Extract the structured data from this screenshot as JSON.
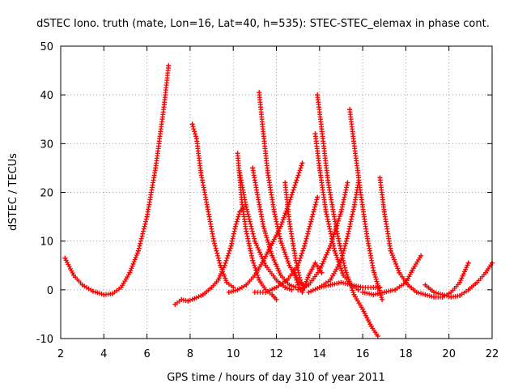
{
  "chart_data": {
    "type": "scatter",
    "title": "dSTEC Iono. truth (mate, Lon=16, Lat=40, h=535): STEC-STEC_elemax in phase cont.",
    "xlabel": "GPS time / hours of day 310 of year 2011",
    "ylabel": "dSTEC  / TECUs",
    "xlim": [
      2,
      22
    ],
    "ylim": [
      -10,
      50
    ],
    "x_ticks": [
      "2",
      "4",
      "6",
      "8",
      "10",
      "12",
      "14",
      "16",
      "18",
      "20",
      "22"
    ],
    "y_ticks": [
      "-10",
      "0",
      "10",
      "20",
      "30",
      "40",
      "50"
    ],
    "grid": true,
    "legend": "none",
    "marker": "+",
    "color": "#ff0000",
    "series": [
      {
        "x": [
          2.2,
          2.6,
          3.0,
          3.5,
          4.0,
          4.4,
          4.8,
          5.2,
          5.6,
          6.0,
          6.4,
          6.8,
          7.0
        ],
        "y": [
          6.5,
          3.0,
          1.0,
          -0.3,
          -1.0,
          -0.8,
          0.5,
          3.5,
          8.0,
          15.0,
          25.0,
          38.0,
          46.0
        ]
      },
      {
        "x": [
          7.3,
          7.6,
          7.9,
          8.2,
          8.6,
          9.0,
          9.3,
          9.6,
          9.9,
          10.1,
          10.3,
          10.5
        ],
        "y": [
          -3.0,
          -2.0,
          -2.3,
          -1.8,
          -1.0,
          0.5,
          2.0,
          5.0,
          9.0,
          13.0,
          16.0,
          17.0
        ]
      },
      {
        "x": [
          8.1,
          8.3,
          8.5,
          8.8,
          9.1,
          9.4,
          9.7,
          10.0
        ],
        "y": [
          34.0,
          31.0,
          24.0,
          17.0,
          10.0,
          5.0,
          1.5,
          0.5
        ]
      },
      {
        "x": [
          10.2,
          10.4,
          10.6,
          10.9,
          11.2,
          11.5,
          11.8,
          12.0
        ],
        "y": [
          28.0,
          18.0,
          12.0,
          6.0,
          2.0,
          0.0,
          -1.0,
          -2.0
        ]
      },
      {
        "x": [
          9.8,
          10.2,
          10.6,
          11.0,
          11.4,
          11.8,
          12.2,
          12.6,
          12.9,
          13.2
        ],
        "y": [
          -0.5,
          0.0,
          1.0,
          3.0,
          6.0,
          9.5,
          13.0,
          18.0,
          22.0,
          26.0
        ]
      },
      {
        "x": [
          10.3,
          10.6,
          11.0,
          11.5,
          12.0,
          12.4,
          12.7
        ],
        "y": [
          24.0,
          17.0,
          10.0,
          5.0,
          2.0,
          0.5,
          0.0
        ]
      },
      {
        "x": [
          10.9,
          11.1,
          11.4,
          11.8,
          12.2,
          12.6,
          12.9
        ],
        "y": [
          25.0,
          20.0,
          13.0,
          7.0,
          3.0,
          1.0,
          0.5
        ]
      },
      {
        "x": [
          11.2,
          11.4,
          11.6,
          11.9,
          12.2,
          12.6,
          13.0,
          13.3
        ],
        "y": [
          40.5,
          32.0,
          24.0,
          16.0,
          10.0,
          5.0,
          2.0,
          0.5
        ]
      },
      {
        "x": [
          11.0,
          11.5,
          12.0,
          12.5,
          13.0,
          13.3,
          13.6,
          13.9
        ],
        "y": [
          -0.5,
          -0.5,
          0.5,
          2.0,
          5.0,
          9.0,
          14.0,
          19.0
        ]
      },
      {
        "x": [
          12.4,
          12.6,
          12.9,
          13.1,
          13.3
        ],
        "y": [
          22.0,
          14.0,
          6.0,
          2.0,
          0.5
        ]
      },
      {
        "x": [
          12.8,
          13.0,
          13.2,
          13.5,
          13.8,
          14.1
        ],
        "y": [
          4.0,
          1.0,
          -0.5,
          3.0,
          5.5,
          3.5
        ]
      },
      {
        "x": [
          13.8,
          14.0,
          14.3,
          14.7,
          15.1,
          15.5,
          15.8
        ],
        "y": [
          32.0,
          25.0,
          16.0,
          8.0,
          3.0,
          1.0,
          0.0
        ]
      },
      {
        "x": [
          13.9,
          14.1,
          14.4,
          14.8,
          15.2,
          15.6,
          16.0,
          16.4,
          16.7
        ],
        "y": [
          40.0,
          33.0,
          22.0,
          12.0,
          4.0,
          -1.0,
          -4.0,
          -7.5,
          -9.5
        ]
      },
      {
        "x": [
          13.0,
          13.5,
          14.0,
          14.5,
          15.0,
          15.3
        ],
        "y": [
          0.0,
          1.0,
          4.0,
          9.0,
          16.0,
          22.0
        ]
      },
      {
        "x": [
          13.5,
          14.0,
          14.5,
          15.0,
          15.3,
          15.6,
          15.8
        ],
        "y": [
          -0.5,
          0.5,
          2.0,
          6.0,
          11.0,
          17.0,
          22.0
        ]
      },
      {
        "x": [
          15.4,
          15.6,
          15.9,
          16.2,
          16.5,
          16.9
        ],
        "y": [
          37.0,
          30.0,
          20.0,
          11.0,
          4.0,
          -2.0
        ]
      },
      {
        "x": [
          14.0,
          14.5,
          15.0,
          15.5,
          16.0,
          16.5,
          16.8
        ],
        "y": [
          0.5,
          1.0,
          1.5,
          1.0,
          0.5,
          0.5,
          0.5
        ]
      },
      {
        "x": [
          16.8,
          17.0,
          17.3,
          17.7,
          18.1,
          18.5,
          18.9,
          19.3,
          19.7,
          20.1,
          20.5,
          20.9
        ],
        "y": [
          23.0,
          16.0,
          8.0,
          3.5,
          1.0,
          -0.5,
          -1.0,
          -1.5,
          -1.5,
          -0.5,
          1.5,
          5.5
        ]
      },
      {
        "x": [
          16.0,
          16.5,
          17.0,
          17.5,
          18.0,
          18.3,
          18.7
        ],
        "y": [
          -0.5,
          -1.0,
          -0.5,
          0.0,
          1.5,
          4.0,
          7.0
        ]
      },
      {
        "x": [
          18.9,
          19.3,
          19.7,
          20.1,
          20.5,
          20.9,
          21.3,
          21.7,
          22.0
        ],
        "y": [
          1.0,
          -0.5,
          -1.0,
          -1.5,
          -1.2,
          0.0,
          1.5,
          3.5,
          5.5
        ]
      }
    ]
  }
}
